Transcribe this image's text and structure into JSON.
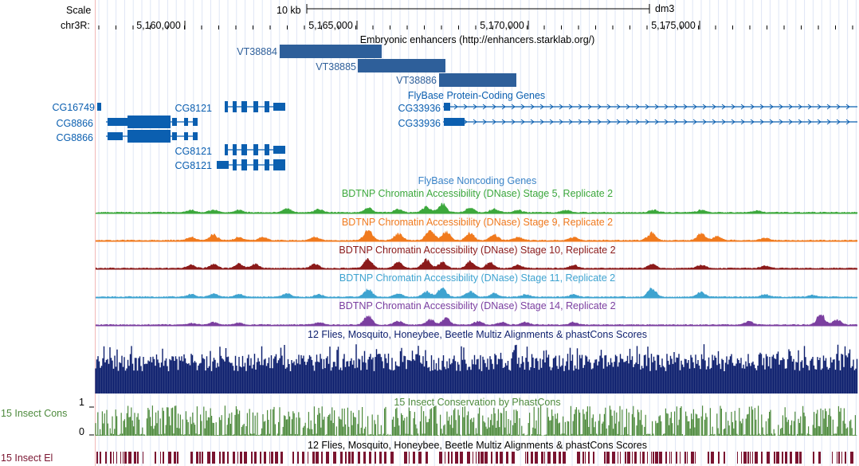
{
  "ruler": {
    "scale_label": "Scale",
    "scale_bar_label": "10 kb",
    "assembly": "dm3",
    "chrom_label": "chr3R:",
    "positions": [
      "5,160,000",
      "5,165,000",
      "5,170,000",
      "5,175,000"
    ]
  },
  "tracks": {
    "enhancers": {
      "title": "Embryonic enhancers (http://enhancers.starklab.org/)",
      "color": "#2e5f9a",
      "items": [
        "VT38884",
        "VT38885",
        "VT38886"
      ]
    },
    "coding_genes": {
      "title": "FlyBase Protein-Coding Genes",
      "color": "#0b5fb0",
      "genes": [
        "CG16749",
        "CG8866",
        "CG8866",
        "CG8121",
        "CG8121",
        "CG8121",
        "CG33936",
        "CG33936"
      ]
    },
    "noncoding": {
      "title": "FlyBase Noncoding Genes",
      "color": "#3a83c7"
    },
    "dnase": [
      {
        "title": "BDTNP Chromatin Accessibility (DNase) Stage 5, Replicate 2",
        "color": "#3ca83c"
      },
      {
        "title": "BDTNP Chromatin Accessibility (DNase) Stage 9, Replicate 2",
        "color": "#f07a1e"
      },
      {
        "title": "BDTNP Chromatin Accessibility (DNase) Stage 10, Replicate 2",
        "color": "#8b1a1a"
      },
      {
        "title": "BDTNP Chromatin Accessibility (DNase) Stage 11, Replicate 2",
        "color": "#3ea3d0"
      },
      {
        "title": "BDTNP Chromatin Accessibility (DNase) Stage 14, Replicate 2",
        "color": "#7b3fa0"
      }
    ],
    "multiz": {
      "title": "12 Flies, Mosquito, Honeybee, Beetle Multiz Alignments & phastCons Scores",
      "color": "#0d1f6e"
    },
    "phastcons": {
      "title": "15 Insect Conservation by PhastCons",
      "side_label": "15 Insect Cons",
      "axis_top": "1",
      "axis_bottom": "0",
      "color": "#4d8a3c"
    },
    "elements": {
      "title": "12 Flies, Mosquito, Honeybee, Beetle Multiz Alignments & phastCons Scores",
      "side_label": "15 Insect El",
      "color": "#7a1430"
    }
  }
}
